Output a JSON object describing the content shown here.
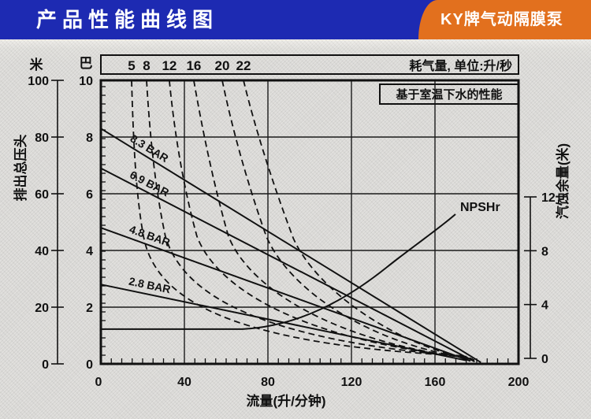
{
  "header": {
    "title": "产品性能曲线图",
    "badge": "KY牌气动隔膜泵",
    "header_color": "#1d2ab2",
    "badge_color": "#e2701e"
  },
  "chart_data": {
    "type": "line",
    "title": "产品性能曲线图",
    "note": "基于室温下水的性能",
    "x_axis": {
      "title": "流量(升/分钟)",
      "min": 0,
      "max": 200,
      "major_ticks": [
        0,
        40,
        80,
        120,
        160,
        200
      ],
      "minor_step": 5
    },
    "head_axis_bar": {
      "unit_label": "巴",
      "min": 0,
      "max": 10,
      "major_ticks": [
        10,
        8,
        6,
        4,
        2,
        0
      ]
    },
    "head_axis_m": {
      "unit_label": "米",
      "title": "排出总压头",
      "min": 0,
      "max": 100,
      "major_ticks": [
        100,
        80,
        60,
        40,
        20,
        0
      ]
    },
    "npsh_axis": {
      "title": "汽蚀余量(米)",
      "min": 0,
      "max": 12,
      "major_ticks": [
        12,
        8,
        4,
        0
      ]
    },
    "top_axis": {
      "title": "耗气量, 单位:升/秒",
      "values": [
        "5",
        "8",
        "12",
        "16",
        "20",
        "22"
      ]
    },
    "head_curves": [
      {
        "label": "8.3 BAR",
        "points": [
          [
            0,
            8.3
          ],
          [
            182,
            0.05
          ]
        ]
      },
      {
        "label": "6.9 BAR",
        "points": [
          [
            0,
            6.9
          ],
          [
            179,
            0.08
          ]
        ]
      },
      {
        "label": "4.8 BAR",
        "points": [
          [
            0,
            4.8
          ],
          [
            177,
            0.1
          ]
        ]
      },
      {
        "label": "2.8 BAR",
        "points": [
          [
            0,
            2.8
          ],
          [
            175,
            0.12
          ]
        ]
      }
    ],
    "air_curves": [
      {
        "label": "5",
        "pts": [
          [
            14.7,
            10
          ],
          [
            15.5,
            7.97
          ],
          [
            16.6,
            6.03
          ],
          [
            20.4,
            4.5
          ],
          [
            25.7,
            2.42
          ],
          [
            57.4,
            0.67
          ],
          [
            175.1,
            0.28
          ]
        ]
      },
      {
        "label": "8",
        "pts": [
          [
            21.9,
            10
          ],
          [
            23.4,
            8.11
          ],
          [
            26.0,
            6.17
          ],
          [
            30.9,
            4.5
          ],
          [
            39.2,
            2.42
          ],
          [
            76.2,
            0.83
          ],
          [
            175.8,
            0.25
          ]
        ]
      },
      {
        "label": "12",
        "pts": [
          [
            32.8,
            10
          ],
          [
            35.1,
            8.25
          ],
          [
            39.2,
            6.31
          ],
          [
            46.0,
            4.5
          ],
          [
            55.8,
            2.61
          ],
          [
            97.0,
            0.83
          ],
          [
            176.6,
            0.22
          ]
        ]
      },
      {
        "label": "16",
        "pts": [
          [
            44.5,
            10
          ],
          [
            48.3,
            8.39
          ],
          [
            53.6,
            6.44
          ],
          [
            61.1,
            4.5
          ],
          [
            71.7,
            2.56
          ],
          [
            114.0,
            0.75
          ],
          [
            177.4,
            0.19
          ]
        ]
      },
      {
        "label": "20",
        "pts": [
          [
            58.1,
            10
          ],
          [
            62.6,
            8.39
          ],
          [
            69.8,
            6.44
          ],
          [
            79.2,
            4.5
          ],
          [
            90.6,
            2.56
          ],
          [
            129.1,
            0.69
          ],
          [
            178.1,
            0.17
          ]
        ]
      },
      {
        "label": "22",
        "pts": [
          [
            68.3,
            10
          ],
          [
            73.6,
            8.39
          ],
          [
            81.9,
            6.44
          ],
          [
            92.1,
            4.44
          ],
          [
            103.4,
            2.56
          ],
          [
            142.3,
            0.61
          ],
          [
            178.9,
            0.14
          ]
        ]
      }
    ],
    "npsh_curve": {
      "label": "NPSHr",
      "pts": [
        [
          0,
          2.17
        ],
        [
          67.9,
          2.17
        ],
        [
          95.1,
          2.4
        ],
        [
          117.7,
          4.39
        ],
        [
          136.6,
          6.73
        ],
        [
          149.8,
          8.37
        ],
        [
          161.1,
          9.54
        ],
        [
          169.8,
          10.71
        ]
      ]
    }
  }
}
